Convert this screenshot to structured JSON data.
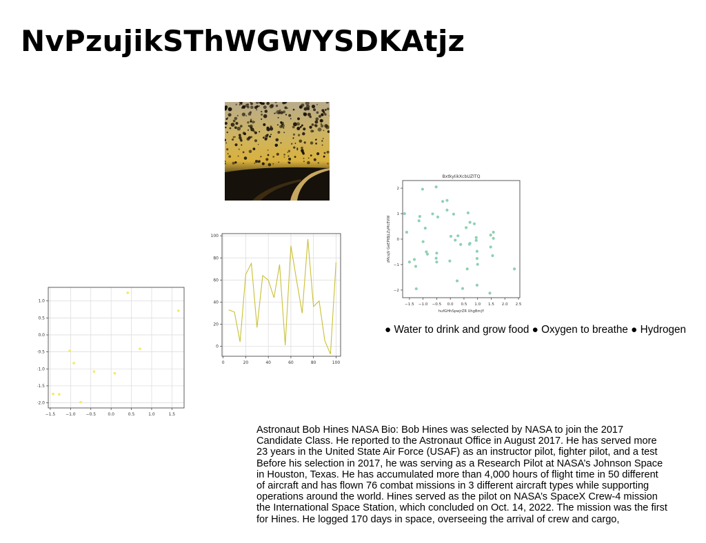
{
  "page": {
    "title": "NvPzujikSThWGWYSDKAtjz",
    "bullets": "● Water to drink and grow food ● Oxygen to breathe ● Hydrogen",
    "bio_lines": [
      "Astronaut Bob Hines NASA Bio: Bob Hines was selected by NASA to join the 2017",
      "Candidate Class. He reported to the Astronaut Office in August 2017. He has served more",
      "23 years in the United State Air Force (USAF) as an instructor pilot, fighter pilot, and a test",
      "Before his selection in 2017, he was serving as a Research Pilot at NASA’s Johnson Space",
      "in Houston, Texas. He has accumulated more than 4,000 hours of flight time in 50 different",
      "of aircraft and has flown 76 combat missions in 3 different aircraft types while supporting",
      "operations around the world. Hines served as the pilot on NASA’s SpaceX Crew-4 mission",
      "the International Space Station, which concluded on Oct. 14, 2022. The mission was the first",
      "for Hines. He logged 170 days in space, overseeing the arrival of crew and cargo,"
    ]
  },
  "photo": {
    "palette": [
      "#1c1508",
      "#d8b440",
      "#e9e2cc",
      "#3a2d14"
    ]
  },
  "chart_data": [
    {
      "id": "scatter-small",
      "type": "scatter",
      "title": "",
      "xlabel": "",
      "ylabel": "",
      "xlim": [
        -1.55,
        1.8
      ],
      "ylim": [
        -2.15,
        1.4
      ],
      "xticks": [
        -1.5,
        -1.0,
        -0.5,
        0.0,
        0.5,
        1.0,
        1.5
      ],
      "xtick_labels": [
        "−1.5",
        "−1.0",
        "−0.5",
        "0.0",
        "0.5",
        "1.0",
        "1.5"
      ],
      "yticks": [
        -2.0,
        -1.5,
        -1.0,
        -0.5,
        0.0,
        0.5,
        1.0
      ],
      "ytick_labels": [
        "−2.0",
        "−1.5",
        "−1.0",
        "−0.5",
        "0.0",
        "0.5",
        "1.0"
      ],
      "grid": true,
      "color": "#f5ea6e",
      "points": [
        [
          -1.43,
          -1.74
        ],
        [
          -1.28,
          -1.75
        ],
        [
          -1.02,
          -0.47
        ],
        [
          -0.92,
          -0.83
        ],
        [
          -0.75,
          -1.98
        ],
        [
          -0.42,
          -1.08
        ],
        [
          0.09,
          -1.13
        ],
        [
          0.41,
          1.24
        ],
        [
          0.71,
          -0.41
        ],
        [
          1.66,
          0.71
        ]
      ]
    },
    {
      "id": "line",
      "type": "line",
      "title": "",
      "xlabel": "",
      "ylabel": "",
      "xlim": [
        -1,
        104
      ],
      "ylim": [
        -9,
        102
      ],
      "xticks": [
        0,
        20,
        40,
        60,
        80,
        100
      ],
      "xtick_labels": [
        "0",
        "20",
        "40",
        "60",
        "80",
        "100"
      ],
      "yticks": [
        0,
        20,
        40,
        60,
        80,
        100
      ],
      "ytick_labels": [
        "0",
        "20",
        "40",
        "60",
        "80",
        "100"
      ],
      "grid": true,
      "color": "#c9c034",
      "x": [
        5,
        10,
        15,
        20,
        25,
        30,
        35,
        40,
        45,
        50,
        55,
        60,
        65,
        70,
        75,
        80,
        85,
        90,
        95,
        100
      ],
      "y": [
        33,
        31,
        4,
        65,
        75,
        17,
        64,
        60,
        44,
        74,
        1,
        91,
        60,
        30,
        97,
        36,
        41,
        5,
        -7,
        76
      ]
    },
    {
      "id": "scatter-large",
      "type": "scatter",
      "title": "BxtkyIikXcbUZlTQ",
      "xlabel": "hufGHhSpwjrZR UhgBmjY",
      "ylabel": "zMcsjV GeEPtBjLZyMcEVW",
      "xlim": [
        -1.75,
        2.55
      ],
      "ylim": [
        -2.3,
        2.3
      ],
      "xticks": [
        -1.5,
        -1.0,
        -0.5,
        0.0,
        0.5,
        1.0,
        1.5,
        2.0,
        2.5
      ],
      "xtick_labels": [
        "−1.5",
        "−1.0",
        "−0.5",
        "0.0",
        "0.5",
        "1.0",
        "1.5",
        "2.0",
        "2.5"
      ],
      "yticks": [
        -2,
        -1,
        0,
        1,
        2
      ],
      "ytick_labels": [
        "−2",
        "−1",
        "0",
        "1",
        "2"
      ],
      "grid": false,
      "color": "#8fd0b4",
      "points": [
        [
          -1.68,
          1.0
        ],
        [
          -1.6,
          0.27
        ],
        [
          -1.5,
          -0.9
        ],
        [
          -1.32,
          -0.8
        ],
        [
          -1.27,
          -1.07
        ],
        [
          -1.25,
          -1.95
        ],
        [
          -1.15,
          0.72
        ],
        [
          -1.12,
          0.89
        ],
        [
          -1.02,
          1.96
        ],
        [
          -1.0,
          -0.1
        ],
        [
          -0.92,
          0.43
        ],
        [
          -0.88,
          -0.5
        ],
        [
          -0.84,
          -0.59
        ],
        [
          -0.65,
          0.99
        ],
        [
          -0.52,
          2.05
        ],
        [
          -0.5,
          -0.55
        ],
        [
          -0.52,
          -0.75
        ],
        [
          -0.5,
          -0.9
        ],
        [
          -0.46,
          0.87
        ],
        [
          -0.28,
          1.48
        ],
        [
          -0.12,
          1.14
        ],
        [
          -0.12,
          1.52
        ],
        [
          -0.02,
          -0.86
        ],
        [
          0.02,
          0.11
        ],
        [
          0.12,
          0.98
        ],
        [
          0.18,
          -0.04
        ],
        [
          0.25,
          -1.64
        ],
        [
          0.28,
          0.13
        ],
        [
          0.38,
          -0.21
        ],
        [
          0.45,
          -1.94
        ],
        [
          0.58,
          0.45
        ],
        [
          0.62,
          -1.17
        ],
        [
          0.65,
          1.03
        ],
        [
          0.7,
          -0.2
        ],
        [
          0.72,
          -0.17
        ],
        [
          0.72,
          0.66
        ],
        [
          0.88,
          0.6
        ],
        [
          0.95,
          0.06
        ],
        [
          0.95,
          -0.05
        ],
        [
          0.98,
          -0.48
        ],
        [
          0.98,
          -0.76
        ],
        [
          0.98,
          -1.81
        ],
        [
          1.0,
          -0.99
        ],
        [
          1.45,
          -2.12
        ],
        [
          1.48,
          -0.31
        ],
        [
          1.48,
          0.16
        ],
        [
          1.58,
          0.27
        ],
        [
          1.58,
          0.03
        ],
        [
          1.55,
          -0.65
        ],
        [
          2.35,
          -1.17
        ]
      ]
    }
  ]
}
